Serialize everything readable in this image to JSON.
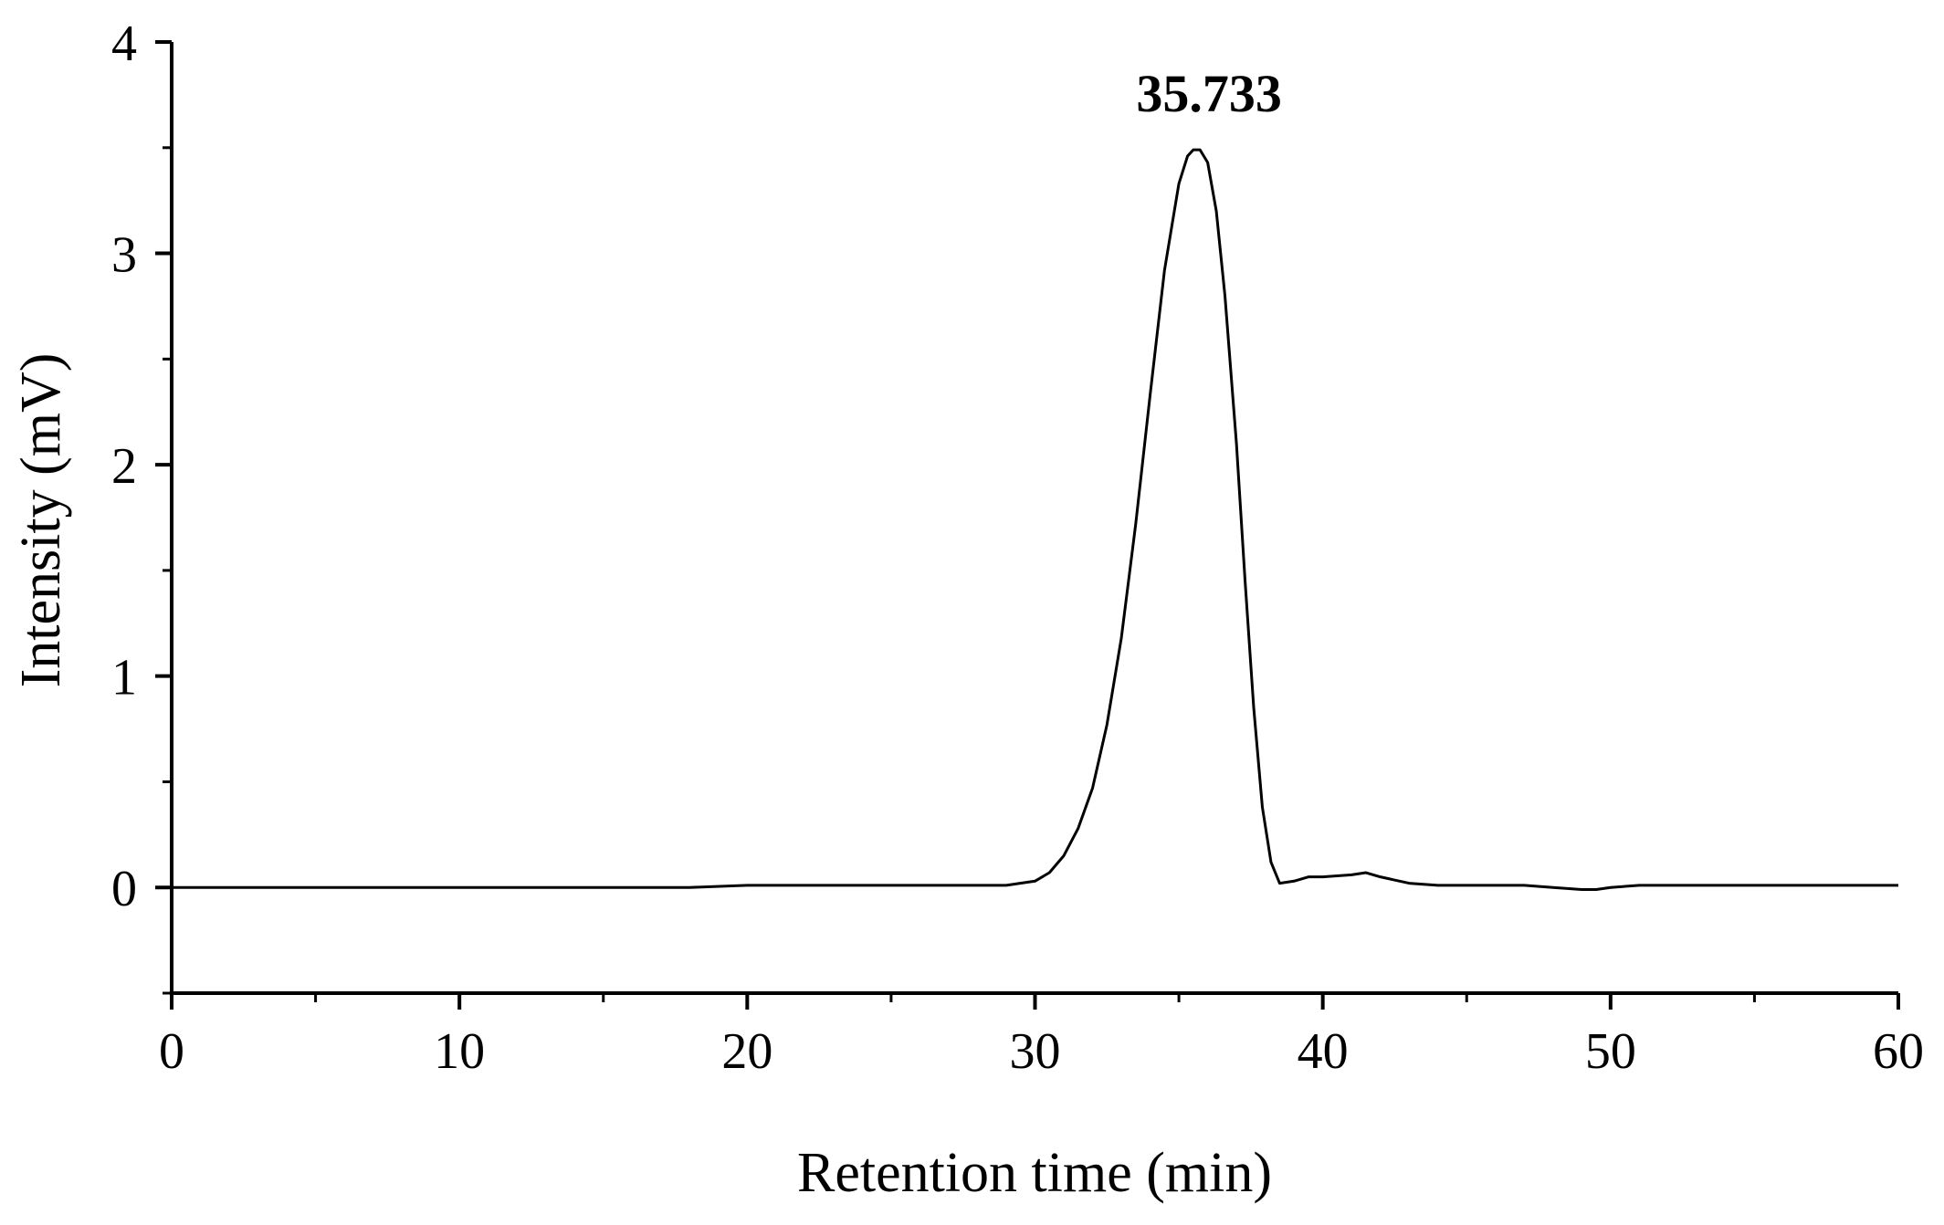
{
  "chart_data": {
    "type": "line",
    "title": "",
    "xlabel": "Retention time (min)",
    "ylabel": "Intensity (mV)",
    "xlim": [
      0,
      60
    ],
    "ylim": [
      -0.5,
      4
    ],
    "x_ticks": [
      "0",
      "10",
      "20",
      "30",
      "40",
      "50",
      "60"
    ],
    "y_ticks": [
      "0",
      "1",
      "2",
      "3",
      "4"
    ],
    "grid": false,
    "legend": "none",
    "line_color": "#000000",
    "annotations": [
      {
        "text": "35.733",
        "x": 35.733,
        "y": 3.49
      }
    ],
    "series": [
      {
        "x": [
          0,
          2,
          4,
          6,
          8,
          10,
          12,
          14,
          16,
          18,
          20,
          22,
          24,
          26,
          28,
          29,
          30,
          30.5,
          31,
          31.5,
          32,
          32.5,
          33,
          33.5,
          34,
          34.5,
          35,
          35.3,
          35.5,
          35.733,
          36,
          36.3,
          36.6,
          37,
          37.3,
          37.6,
          37.9,
          38.2,
          38.5,
          39,
          39.5,
          40,
          41,
          41.5,
          42,
          43,
          44,
          45,
          46,
          47,
          48,
          49,
          49.5,
          50,
          51,
          52,
          54,
          56,
          58,
          60
        ],
        "y": [
          0.0,
          0.0,
          0.0,
          0.0,
          0.0,
          0.0,
          0.0,
          0.0,
          0.0,
          0.0,
          0.01,
          0.01,
          0.01,
          0.01,
          0.01,
          0.01,
          0.03,
          0.07,
          0.15,
          0.28,
          0.47,
          0.77,
          1.18,
          1.72,
          2.33,
          2.92,
          3.33,
          3.46,
          3.49,
          3.49,
          3.43,
          3.2,
          2.8,
          2.1,
          1.45,
          0.85,
          0.38,
          0.12,
          0.02,
          0.03,
          0.05,
          0.05,
          0.06,
          0.07,
          0.05,
          0.02,
          0.01,
          0.01,
          0.01,
          0.01,
          0.0,
          -0.01,
          -0.01,
          0.0,
          0.01,
          0.01,
          0.01,
          0.01,
          0.01,
          0.01
        ]
      }
    ]
  }
}
